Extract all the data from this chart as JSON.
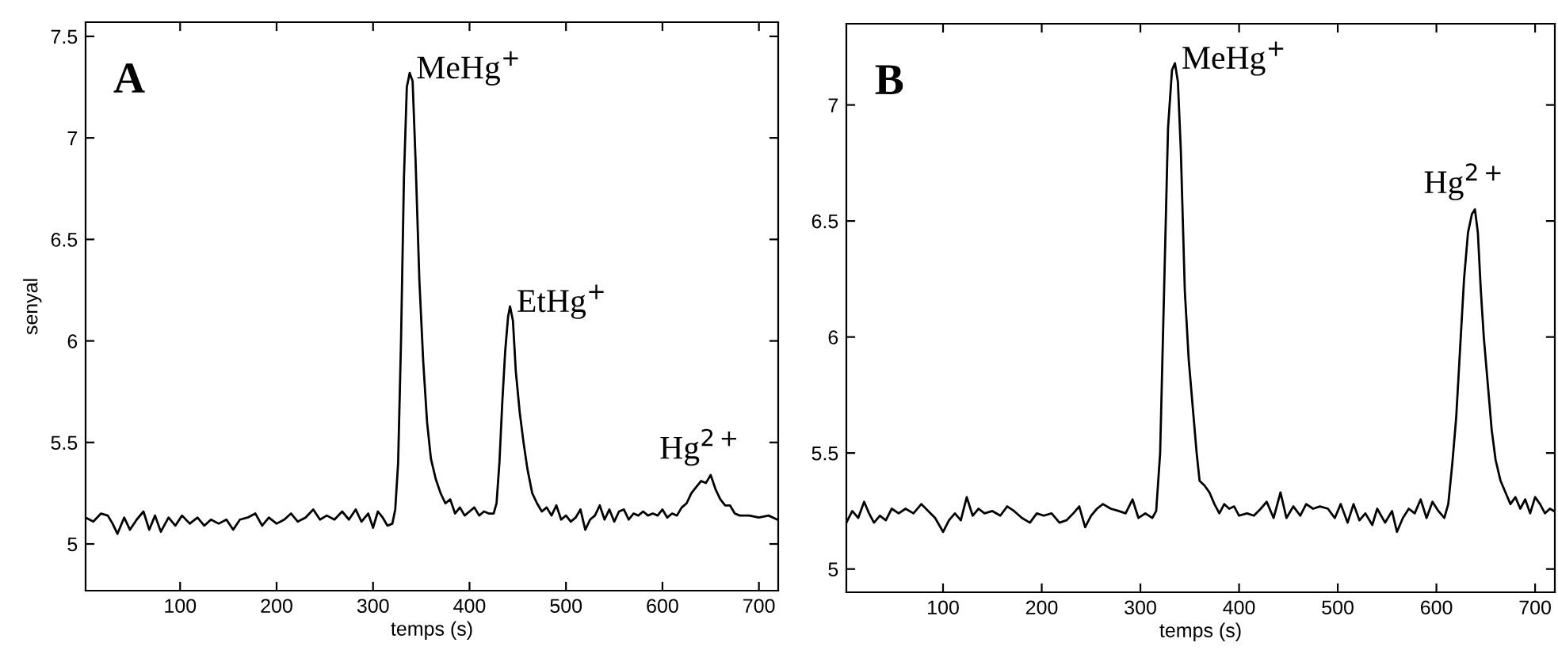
{
  "chart_data": [
    {
      "type": "line",
      "xlabel": "temps (s)",
      "ylabel": "senyal",
      "xlim": [
        2,
        720
      ],
      "ylim": [
        4.77,
        7.57
      ],
      "xticks": [
        100,
        200,
        300,
        400,
        500,
        600,
        700
      ],
      "yticks": [
        5,
        5.5,
        6,
        6.5,
        7,
        7.5
      ],
      "grid": false,
      "legend": false,
      "annotations": [
        "A",
        {
          "text": "MeHg$^{+}$",
          "x": 338,
          "y": 7.32
        },
        {
          "text": "EtHg$^{+}$",
          "x": 442,
          "y": 6.17
        },
        {
          "text": "Hg$^{2+}$",
          "x": 650,
          "y": 5.34
        }
      ],
      "series": [
        {
          "color": "#000000",
          "x": [
            2,
            10,
            18,
            25,
            30,
            35,
            42,
            48,
            55,
            62,
            68,
            74,
            80,
            88,
            95,
            102,
            110,
            118,
            125,
            132,
            140,
            148,
            155,
            162,
            170,
            178,
            185,
            192,
            200,
            208,
            215,
            222,
            230,
            238,
            245,
            252,
            260,
            268,
            275,
            282,
            288,
            295,
            300,
            305,
            310,
            315,
            320,
            323,
            326,
            329,
            332,
            335,
            338,
            341,
            344,
            348,
            352,
            356,
            360,
            365,
            370,
            375,
            380,
            385,
            390,
            395,
            400,
            405,
            410,
            415,
            420,
            425,
            428,
            431,
            434,
            437,
            440,
            442,
            445,
            448,
            452,
            456,
            460,
            465,
            470,
            475,
            480,
            485,
            490,
            495,
            500,
            505,
            510,
            515,
            520,
            525,
            530,
            535,
            540,
            545,
            550,
            555,
            560,
            565,
            570,
            575,
            580,
            585,
            590,
            595,
            600,
            605,
            610,
            615,
            620,
            625,
            630,
            635,
            640,
            645,
            650,
            655,
            660,
            665,
            670,
            675,
            680,
            690,
            700,
            710,
            719
          ],
          "values": [
            5.13,
            5.11,
            5.15,
            5.14,
            5.1,
            5.05,
            5.13,
            5.07,
            5.12,
            5.16,
            5.07,
            5.14,
            5.06,
            5.13,
            5.09,
            5.14,
            5.1,
            5.13,
            5.09,
            5.12,
            5.1,
            5.12,
            5.07,
            5.12,
            5.13,
            5.15,
            5.09,
            5.13,
            5.1,
            5.12,
            5.15,
            5.11,
            5.13,
            5.17,
            5.12,
            5.14,
            5.12,
            5.16,
            5.12,
            5.17,
            5.11,
            5.15,
            5.08,
            5.16,
            5.13,
            5.09,
            5.1,
            5.17,
            5.4,
            6.0,
            6.8,
            7.25,
            7.32,
            7.28,
            6.9,
            6.3,
            5.9,
            5.6,
            5.42,
            5.32,
            5.25,
            5.2,
            5.22,
            5.15,
            5.18,
            5.14,
            5.16,
            5.18,
            5.14,
            5.16,
            5.15,
            5.15,
            5.2,
            5.4,
            5.7,
            5.95,
            6.12,
            6.17,
            6.1,
            5.85,
            5.65,
            5.5,
            5.37,
            5.25,
            5.2,
            5.16,
            5.18,
            5.14,
            5.19,
            5.12,
            5.14,
            5.11,
            5.13,
            5.17,
            5.07,
            5.12,
            5.14,
            5.19,
            5.12,
            5.17,
            5.11,
            5.16,
            5.17,
            5.12,
            5.15,
            5.14,
            5.16,
            5.14,
            5.15,
            5.14,
            5.17,
            5.13,
            5.15,
            5.14,
            5.18,
            5.2,
            5.25,
            5.28,
            5.31,
            5.3,
            5.34,
            5.27,
            5.22,
            5.19,
            5.19,
            5.15,
            5.14,
            5.14,
            5.13,
            5.14,
            5.12
          ]
        }
      ]
    },
    {
      "type": "line",
      "xlabel": "temps (s)",
      "xlim": [
        2,
        720
      ],
      "ylim": [
        4.9,
        7.35
      ],
      "xticks": [
        100,
        200,
        300,
        400,
        500,
        600,
        700
      ],
      "yticks": [
        5,
        5.5,
        6,
        6.5,
        7
      ],
      "grid": false,
      "legend": false,
      "annotations": [
        "B",
        {
          "text": "MeHg$^{+}$",
          "x": 335,
          "y": 7.18
        },
        {
          "text": "Hg$^{2+}$",
          "x": 639,
          "y": 6.55
        }
      ],
      "series": [
        {
          "color": "#000000",
          "x": [
            2,
            8,
            14,
            20,
            25,
            30,
            36,
            42,
            48,
            55,
            62,
            70,
            78,
            85,
            92,
            100,
            106,
            112,
            118,
            124,
            130,
            136,
            142,
            150,
            158,
            165,
            172,
            180,
            188,
            195,
            202,
            210,
            218,
            225,
            232,
            238,
            244,
            250,
            256,
            262,
            270,
            278,
            285,
            292,
            298,
            305,
            312,
            316,
            320,
            324,
            328,
            332,
            335,
            338,
            341,
            345,
            349,
            353,
            357,
            360,
            365,
            370,
            375,
            380,
            385,
            390,
            395,
            400,
            408,
            415,
            422,
            428,
            435,
            442,
            448,
            455,
            462,
            468,
            475,
            482,
            490,
            497,
            503,
            510,
            516,
            522,
            528,
            535,
            540,
            548,
            555,
            560,
            566,
            572,
            578,
            584,
            590,
            596,
            602,
            608,
            612,
            616,
            620,
            624,
            628,
            632,
            636,
            639,
            642,
            645,
            648,
            652,
            656,
            660,
            665,
            670,
            675,
            680,
            685,
            690,
            695,
            700,
            705,
            710,
            715,
            719
          ],
          "values": [
            5.2,
            5.25,
            5.22,
            5.29,
            5.24,
            5.2,
            5.23,
            5.21,
            5.26,
            5.24,
            5.26,
            5.24,
            5.28,
            5.25,
            5.22,
            5.16,
            5.21,
            5.24,
            5.21,
            5.31,
            5.23,
            5.26,
            5.24,
            5.25,
            5.23,
            5.27,
            5.25,
            5.22,
            5.2,
            5.24,
            5.23,
            5.24,
            5.2,
            5.21,
            5.24,
            5.27,
            5.18,
            5.23,
            5.26,
            5.28,
            5.26,
            5.25,
            5.24,
            5.3,
            5.22,
            5.24,
            5.22,
            5.25,
            5.5,
            6.2,
            6.9,
            7.15,
            7.18,
            7.1,
            6.8,
            6.2,
            5.9,
            5.7,
            5.5,
            5.38,
            5.36,
            5.33,
            5.28,
            5.24,
            5.28,
            5.26,
            5.27,
            5.23,
            5.24,
            5.23,
            5.26,
            5.29,
            5.22,
            5.33,
            5.22,
            5.27,
            5.23,
            5.28,
            5.26,
            5.27,
            5.26,
            5.22,
            5.28,
            5.2,
            5.28,
            5.21,
            5.24,
            5.19,
            5.26,
            5.2,
            5.25,
            5.16,
            5.22,
            5.26,
            5.24,
            5.3,
            5.22,
            5.29,
            5.25,
            5.22,
            5.28,
            5.45,
            5.65,
            5.95,
            6.25,
            6.45,
            6.53,
            6.55,
            6.45,
            6.2,
            6.0,
            5.8,
            5.6,
            5.47,
            5.38,
            5.33,
            5.28,
            5.31,
            5.26,
            5.3,
            5.24,
            5.31,
            5.28,
            5.24,
            5.26,
            5.25
          ]
        }
      ]
    }
  ]
}
